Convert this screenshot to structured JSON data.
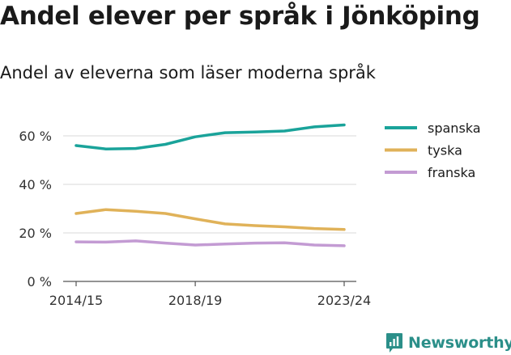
{
  "title": "Andel elever per språk i Jönköping",
  "subtitle": "Andel av eleverna som läser moderna språk",
  "brand": {
    "name": "Newsworthy",
    "icon": "bar-chart-logo-icon",
    "color": "#2b8f89"
  },
  "chart_data": {
    "type": "line",
    "title": "Andel elever per språk i Jönköping",
    "subtitle": "Andel av eleverna som läser moderna språk",
    "xlabel": "",
    "ylabel": "",
    "x": [
      "2014/15",
      "2015/16",
      "2016/17",
      "2017/18",
      "2018/19",
      "2019/20",
      "2020/21",
      "2021/22",
      "2022/23",
      "2023/24"
    ],
    "x_tick_labels": [
      "2014/15",
      "2018/19",
      "2023/24"
    ],
    "y_ticks": [
      0,
      20,
      40,
      60
    ],
    "y_tick_suffix": " %",
    "ylim": [
      0,
      66
    ],
    "grid": "horizontal",
    "legend_position": "right",
    "series": [
      {
        "name": "spanska",
        "color": "#1aa39a",
        "values": [
          56,
          54.6,
          54.8,
          56.5,
          59.6,
          61.3,
          61.6,
          62,
          63.7,
          64.5
        ]
      },
      {
        "name": "tyska",
        "color": "#e0b259",
        "values": [
          28,
          29.6,
          28.9,
          28,
          25.8,
          23.7,
          23,
          22.5,
          21.8,
          21.4
        ]
      },
      {
        "name": "franska",
        "color": "#c39bd3",
        "values": [
          16.3,
          16.2,
          16.7,
          15.8,
          15,
          15.4,
          15.8,
          15.9,
          15,
          14.7
        ]
      }
    ]
  }
}
